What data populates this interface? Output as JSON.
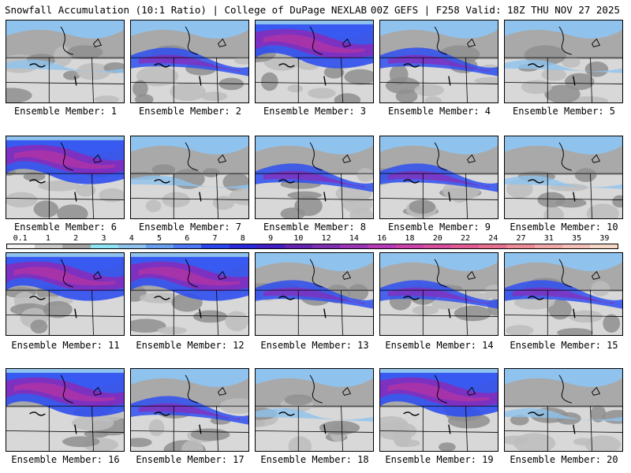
{
  "header": {
    "left": "Snowfall Accumulation (10:1 Ratio) | College of DuPage NEXLAB",
    "right": "00Z GEFS | F258 Valid: 18Z THU NOV 27 2025"
  },
  "colors": {
    "background": "#ffffff",
    "no_snow": "#ffffff",
    "light": "#8f8f8f",
    "accent_blue": "#2f4ff0",
    "accent_purple": "#8a2ab8",
    "accent_magenta": "#c3359b"
  },
  "scale": {
    "labels": [
      "0.1",
      "1",
      "2",
      "3",
      "4",
      "5",
      "6",
      "7",
      "8",
      "9",
      "10",
      "12",
      "14",
      "16",
      "18",
      "20",
      "22",
      "24",
      "27",
      "31",
      "35",
      "39"
    ],
    "colors": [
      "#f2f2f2",
      "#c9c9c9",
      "#a0a0a0",
      "#8ee4f2",
      "#8fc3ee",
      "#6a9ff0",
      "#4d79f2",
      "#2a46e8",
      "#2a2ad8",
      "#4020c0",
      "#6426b0",
      "#7e2fb2",
      "#9a36b6",
      "#b53cb6",
      "#c944a8",
      "#d54f9c",
      "#de5c93",
      "#e5708f",
      "#eb8c98",
      "#efa8a8",
      "#f2c0b8",
      "#f6d8c8"
    ]
  },
  "members": [
    {
      "label": "Ensemble Member: 1",
      "style": "light"
    },
    {
      "label": "Ensemble Member: 2",
      "style": "band"
    },
    {
      "label": "Ensemble Member: 3",
      "style": "heavy"
    },
    {
      "label": "Ensemble Member: 4",
      "style": "band"
    },
    {
      "label": "Ensemble Member: 5",
      "style": "light"
    },
    {
      "label": "Ensemble Member: 6",
      "style": "heavy"
    },
    {
      "label": "Ensemble Member: 7",
      "style": "light"
    },
    {
      "label": "Ensemble Member: 8",
      "style": "band"
    },
    {
      "label": "Ensemble Member: 9",
      "style": "band"
    },
    {
      "label": "Ensemble Member: 10",
      "style": "light"
    },
    {
      "label": "Ensemble Member: 11",
      "style": "heavy"
    },
    {
      "label": "Ensemble Member: 12",
      "style": "heavy"
    },
    {
      "label": "Ensemble Member: 13",
      "style": "band"
    },
    {
      "label": "Ensemble Member: 14",
      "style": "band"
    },
    {
      "label": "Ensemble Member: 15",
      "style": "band"
    },
    {
      "label": "Ensemble Member: 16",
      "style": "heavy"
    },
    {
      "label": "Ensemble Member: 17",
      "style": "band"
    },
    {
      "label": "Ensemble Member: 18",
      "style": "light"
    },
    {
      "label": "Ensemble Member: 19",
      "style": "heavy"
    },
    {
      "label": "Ensemble Member: 20",
      "style": "light"
    }
  ]
}
